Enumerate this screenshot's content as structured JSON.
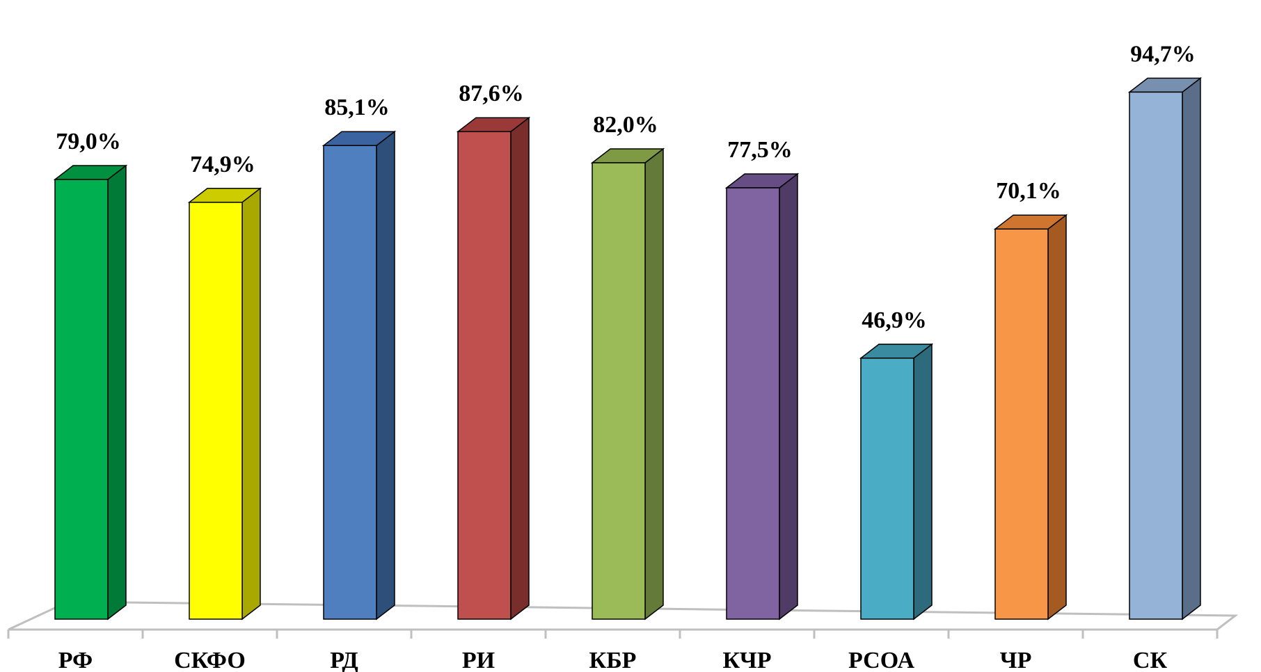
{
  "chart_data": {
    "type": "bar",
    "title": "",
    "xlabel": "",
    "ylabel": "",
    "ylim": [
      0,
      100
    ],
    "grid": false,
    "legend": "none",
    "categories": [
      "РФ",
      "СКФО",
      "РД",
      "РИ",
      "КБР",
      "КЧР",
      "РСОА",
      "ЧР",
      "СК"
    ],
    "values": [
      79.0,
      74.9,
      85.1,
      87.6,
      82.0,
      77.5,
      46.9,
      70.1,
      94.7
    ],
    "value_labels": [
      "79,0%",
      "74,9%",
      "85,1%",
      "87,6%",
      "82,0%",
      "77,5%",
      "46,9%",
      "70,1%",
      "94,7%"
    ],
    "colors": [
      {
        "front": "#00B050",
        "side": "#007A36",
        "top": "#009040"
      },
      {
        "front": "#FFFF00",
        "side": "#A8A800",
        "top": "#CCCC00"
      },
      {
        "front": "#4F7FBF",
        "side": "#2E4F7A",
        "top": "#3A63A0"
      },
      {
        "front": "#C0504D",
        "side": "#7A2E2C",
        "top": "#9A3A38"
      },
      {
        "front": "#9BBB59",
        "side": "#647A38",
        "top": "#7E9A45"
      },
      {
        "front": "#8064A2",
        "side": "#4F3B66",
        "top": "#664E85"
      },
      {
        "front": "#4BACC6",
        "side": "#2C6A7C",
        "top": "#3A8AA0"
      },
      {
        "front": "#F79646",
        "side": "#A55A22",
        "top": "#D07530"
      },
      {
        "front": "#95B3D7",
        "side": "#5A6E8A",
        "top": "#7890B0"
      }
    ]
  }
}
